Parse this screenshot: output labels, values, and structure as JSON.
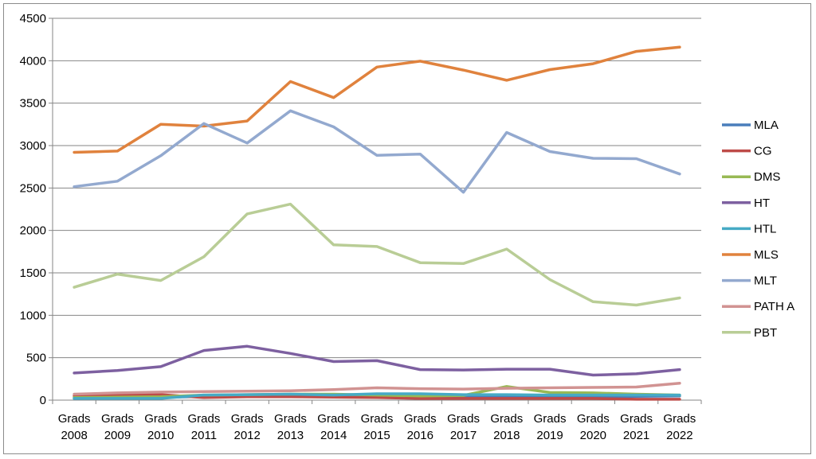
{
  "chart_data": {
    "type": "line",
    "categories": [
      [
        "Grads",
        "2008"
      ],
      [
        "Grads",
        "2009"
      ],
      [
        "Grads",
        "2010"
      ],
      [
        "Grads",
        "2011"
      ],
      [
        "Grads",
        "2012"
      ],
      [
        "Grads",
        "2013"
      ],
      [
        "Grads",
        "2014"
      ],
      [
        "Grads",
        "2015"
      ],
      [
        "Grads",
        "2016"
      ],
      [
        "Grads",
        "2017"
      ],
      [
        "Grads",
        "2018"
      ],
      [
        "Grads",
        "2019"
      ],
      [
        "Grads",
        "2020"
      ],
      [
        "Grads",
        "2021"
      ],
      [
        "Grads",
        "2022"
      ]
    ],
    "ylim": [
      0,
      4500
    ],
    "yticks": [
      "0",
      "500",
      "1000",
      "1500",
      "2000",
      "2500",
      "3000",
      "3500",
      "4000",
      "4500"
    ],
    "grid": true,
    "legend_position": "right",
    "series": [
      {
        "name": "MLA",
        "color": "#4a7ebb",
        "values": [
          20,
          25,
          30,
          45,
          55,
          60,
          50,
          55,
          50,
          45,
          45,
          40,
          40,
          45,
          50
        ]
      },
      {
        "name": "CG",
        "color": "#be4b48",
        "values": [
          50,
          60,
          65,
          30,
          40,
          40,
          35,
          30,
          20,
          20,
          20,
          20,
          20,
          10,
          10
        ]
      },
      {
        "name": "DMS",
        "color": "#98b954",
        "values": [
          30,
          35,
          40,
          60,
          65,
          70,
          70,
          60,
          50,
          55,
          160,
          90,
          85,
          70,
          60
        ]
      },
      {
        "name": "HT",
        "color": "#7d60a0",
        "values": [
          320,
          350,
          395,
          585,
          635,
          550,
          455,
          465,
          360,
          355,
          365,
          365,
          295,
          310,
          360
        ]
      },
      {
        "name": "HTL",
        "color": "#46aac5",
        "values": [
          20,
          20,
          20,
          60,
          65,
          70,
          60,
          75,
          75,
          65,
          65,
          60,
          60,
          60,
          60
        ]
      },
      {
        "name": "MLS",
        "color": "#e0823d",
        "values": [
          2920,
          2935,
          3250,
          3230,
          3290,
          3755,
          3565,
          3925,
          3995,
          3890,
          3770,
          3895,
          3965,
          4110,
          4160
        ]
      },
      {
        "name": "MLT",
        "color": "#93a9cf",
        "values": [
          2515,
          2580,
          2880,
          3260,
          3030,
          3410,
          3220,
          2885,
          2900,
          2450,
          3155,
          2930,
          2850,
          2845,
          2665
        ]
      },
      {
        "name": "PATH A",
        "color": "#d19392",
        "values": [
          70,
          85,
          95,
          100,
          105,
          110,
          125,
          145,
          135,
          130,
          140,
          145,
          150,
          155,
          200
        ]
      },
      {
        "name": "PBT",
        "color": "#b9cd96",
        "values": [
          1330,
          1485,
          1410,
          1690,
          2195,
          2310,
          1830,
          1810,
          1620,
          1610,
          1780,
          1420,
          1160,
          1120,
          1205
        ]
      }
    ]
  }
}
